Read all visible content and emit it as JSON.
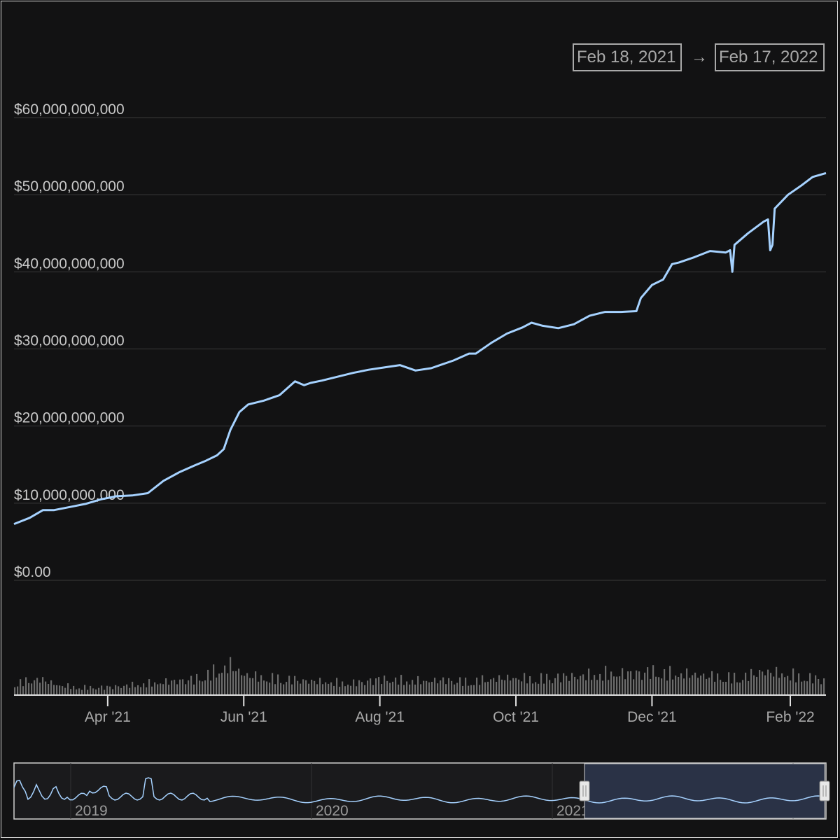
{
  "range": {
    "start": "Feb 18, 2021",
    "arrow": "→",
    "end": "Feb 17, 2022"
  },
  "colors": {
    "background": "#121213",
    "line": "#a6d2ff",
    "volume": "#6b6b6b",
    "grid": "#3a3a3a",
    "text": "#c9c9c9",
    "axis": "#e0e0e0",
    "navigator_window": "#2a3246"
  },
  "chart_data": {
    "type": "line",
    "title": "",
    "xlabel": "",
    "ylabel": "",
    "ylim": [
      0,
      60000000000
    ],
    "yticks": [
      0,
      10000000000,
      20000000000,
      30000000000,
      40000000000,
      50000000000,
      60000000000
    ],
    "ytick_labels": [
      "$0.00",
      "$10,000,000,000",
      "$20,000,000,000",
      "$30,000,000,000",
      "$40,000,000,000",
      "$50,000,000,000",
      "$60,000,000,000"
    ],
    "xlim": [
      "2021-02-18",
      "2022-02-17"
    ],
    "xticks": [
      "2021-04-01",
      "2021-06-01",
      "2021-08-01",
      "2021-10-01",
      "2021-12-01",
      "2022-02-01"
    ],
    "xtick_labels": [
      "Apr '21",
      "Jun '21",
      "Aug '21",
      "Oct '21",
      "Dec '21",
      "Feb '22"
    ],
    "grid": true,
    "series": [
      {
        "values_x": [
          "2021-02-18",
          "2021-02-25",
          "2021-03-03",
          "2021-03-08",
          "2021-03-15",
          "2021-03-22",
          "2021-03-29",
          "2021-04-05",
          "2021-04-12",
          "2021-04-19",
          "2021-04-26",
          "2021-05-03",
          "2021-05-10",
          "2021-05-15",
          "2021-05-20",
          "2021-05-23",
          "2021-05-26",
          "2021-05-30",
          "2021-06-03",
          "2021-06-10",
          "2021-06-17",
          "2021-06-24",
          "2021-06-28",
          "2021-07-01",
          "2021-07-06",
          "2021-07-13",
          "2021-07-20",
          "2021-07-27",
          "2021-08-03",
          "2021-08-10",
          "2021-08-17",
          "2021-08-24",
          "2021-08-28",
          "2021-09-03",
          "2021-09-10",
          "2021-09-13",
          "2021-09-20",
          "2021-09-27",
          "2021-10-04",
          "2021-10-08",
          "2021-10-13",
          "2021-10-20",
          "2021-10-27",
          "2021-11-03",
          "2021-11-10",
          "2021-11-17",
          "2021-11-24",
          "2021-11-26",
          "2021-12-01",
          "2021-12-06",
          "2021-12-10",
          "2021-12-13",
          "2021-12-20",
          "2021-12-27",
          "2022-01-03",
          "2022-01-05",
          "2022-01-06",
          "2022-01-07",
          "2022-01-13",
          "2022-01-20",
          "2022-01-22",
          "2022-01-23",
          "2022-01-24",
          "2022-01-25",
          "2022-01-31",
          "2022-02-06",
          "2022-02-11",
          "2022-02-17"
        ],
        "values": [
          7300000000,
          8100000000,
          9100000000,
          9100000000,
          9500000000,
          9900000000,
          10500000000,
          10900000000,
          11000000000,
          11300000000,
          12900000000,
          14000000000,
          14900000000,
          15500000000,
          16200000000,
          17000000000,
          19500000000,
          21800000000,
          22800000000,
          23300000000,
          24000000000,
          25800000000,
          25300000000,
          25600000000,
          25900000000,
          26400000000,
          26900000000,
          27300000000,
          27600000000,
          27900000000,
          27200000000,
          27500000000,
          27900000000,
          28500000000,
          29400000000,
          29400000000,
          30800000000,
          32000000000,
          32800000000,
          33400000000,
          33000000000,
          32700000000,
          33200000000,
          34300000000,
          34800000000,
          34800000000,
          34900000000,
          36600000000,
          38300000000,
          39000000000,
          41000000000,
          41200000000,
          41900000000,
          42700000000,
          42500000000,
          42800000000,
          40000000000,
          43500000000,
          45000000000,
          46500000000,
          46800000000,
          42800000000,
          43500000000,
          48200000000,
          50000000000,
          51200000000,
          52300000000,
          52800000000
        ]
      }
    ],
    "volume": {
      "ylim": [
        0,
        100
      ],
      "x": [
        "2021-02-18",
        "2021-03-01",
        "2021-03-10",
        "2021-03-20",
        "2021-04-01",
        "2021-04-10",
        "2021-04-20",
        "2021-05-01",
        "2021-05-10",
        "2021-05-20",
        "2021-05-26",
        "2021-06-01",
        "2021-06-10",
        "2021-06-20",
        "2021-07-01",
        "2021-07-10",
        "2021-07-20",
        "2021-08-01",
        "2021-08-10",
        "2021-08-20",
        "2021-09-01",
        "2021-09-10",
        "2021-09-20",
        "2021-10-01",
        "2021-10-10",
        "2021-10-20",
        "2021-11-01",
        "2021-11-10",
        "2021-11-20",
        "2021-12-01",
        "2021-12-10",
        "2021-12-20",
        "2022-01-01",
        "2022-01-10",
        "2022-01-20",
        "2022-02-01",
        "2022-02-10",
        "2022-02-17"
      ],
      "values": [
        22,
        30,
        18,
        14,
        15,
        18,
        22,
        26,
        30,
        45,
        55,
        38,
        32,
        30,
        26,
        24,
        22,
        30,
        28,
        26,
        28,
        25,
        30,
        32,
        30,
        34,
        36,
        40,
        40,
        44,
        40,
        38,
        34,
        32,
        44,
        38,
        32,
        30
      ]
    },
    "navigator": {
      "xtick_labels": [
        "2019",
        "2020",
        "2021",
        "2..."
      ],
      "selected_range": [
        "2021-02-18",
        "2022-02-17"
      ]
    }
  }
}
